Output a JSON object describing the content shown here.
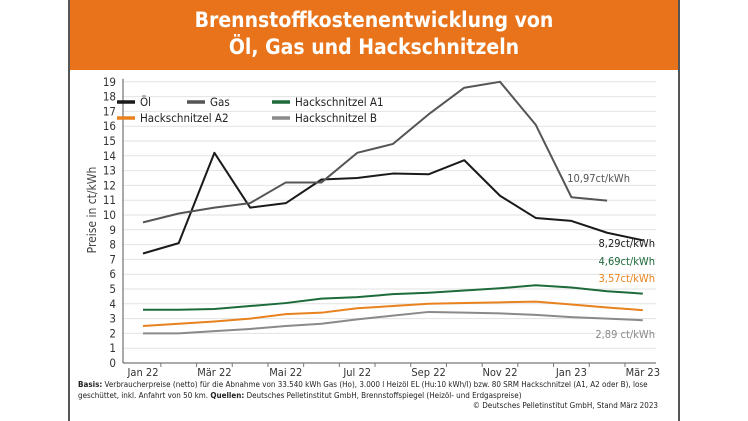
{
  "chart_data": {
    "type": "line",
    "title": "Brennstoffkostenentwicklung von Öl, Gas und Hackschnitzeln",
    "title_lines": [
      "Brennstoffkostenentwicklung von",
      "Öl, Gas und Hackschnitzeln"
    ],
    "ylabel": "Preise in ct/kWh",
    "xlabel": "",
    "ylim": [
      0,
      19
    ],
    "yticks": [
      0,
      1,
      2,
      3,
      4,
      5,
      6,
      7,
      8,
      9,
      10,
      11,
      12,
      13,
      14,
      15,
      16,
      17,
      18,
      19
    ],
    "x": [
      "Jan 22",
      "Feb 22",
      "Mär 22",
      "Apr 22",
      "Mai 22",
      "Jun 22",
      "Jul 22",
      "Aug 22",
      "Sep 22",
      "Okt 22",
      "Nov 22",
      "Dez 22",
      "Jan 23",
      "Feb 23",
      "Mär 23"
    ],
    "xtick_labels": [
      "Jan 22",
      "Mär 22",
      "Mai 22",
      "Jul 22",
      "Sep 22",
      "Nov 22",
      "Jan 23",
      "Mär 23"
    ],
    "grid": true,
    "legend_position": "top-left",
    "series": [
      {
        "name": "Öl",
        "color": "#1a1a1a",
        "values": [
          7.4,
          8.1,
          14.2,
          10.5,
          10.8,
          12.4,
          12.5,
          12.8,
          12.75,
          13.7,
          11.3,
          9.8,
          9.6,
          8.8,
          8.29
        ],
        "end_label": "8,29ct/kWh"
      },
      {
        "name": "Gas",
        "color": "#555555",
        "values": [
          9.5,
          10.1,
          10.5,
          10.8,
          12.2,
          12.2,
          14.2,
          14.8,
          16.8,
          18.6,
          19.0,
          16.1,
          11.2,
          10.97,
          null
        ],
        "end_label": "10,97ct/kWh"
      },
      {
        "name": "Hackschnitzel A1",
        "color": "#1d6b3a",
        "values": [
          3.6,
          3.6,
          3.65,
          3.85,
          4.05,
          4.35,
          4.45,
          4.65,
          4.75,
          4.9,
          5.05,
          5.25,
          5.1,
          4.85,
          4.69
        ],
        "end_label": "4,69ct/kWh"
      },
      {
        "name": "Hackschnitzel A2",
        "color": "#e8821e",
        "values": [
          2.5,
          2.65,
          2.8,
          3.0,
          3.3,
          3.4,
          3.7,
          3.85,
          4.0,
          4.05,
          4.1,
          4.15,
          3.95,
          3.75,
          3.57
        ],
        "end_label": "3,57ct/kWh"
      },
      {
        "name": "Hackschnitzel B",
        "color": "#8a8a8a",
        "values": [
          2.0,
          2.0,
          2.15,
          2.3,
          2.5,
          2.65,
          2.95,
          3.2,
          3.45,
          3.4,
          3.35,
          3.25,
          3.1,
          3.0,
          2.89
        ],
        "end_label": "2,89 ct/kWh"
      }
    ]
  },
  "footer": {
    "basis_label": "Basis:",
    "basis_text": " Verbraucherpreise (netto) für die Abnahme von 33.540 kWh Gas (Ho), 3.000 l Heizöl EL (Hu:10 kWh/l) bzw. 80 SRM Hackschnitzel (A1, A2 oder B), lose geschüttet, inkl. Anfahrt von 50 km. ",
    "sources_label": "Quellen:",
    "sources_text": " Deutsches Pelletinstitut GmbH, Brennstoffspiegel (Heizöl- und Erdgaspreise)",
    "copyright": "© Deutsches Pelletinstitut GmbH, Stand März 2023"
  }
}
